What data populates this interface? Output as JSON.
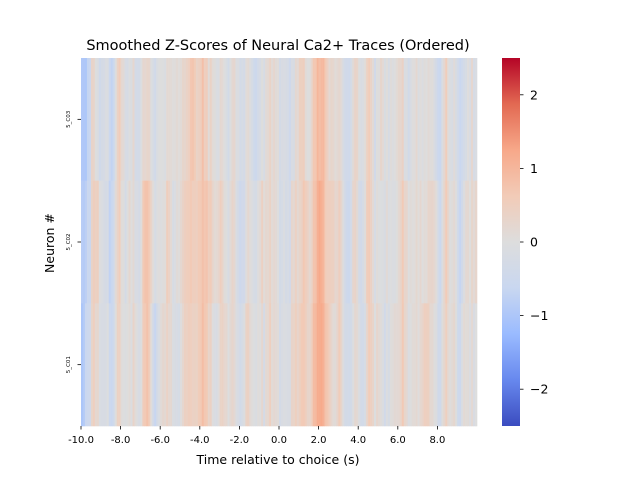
{
  "chart_data": {
    "type": "heatmap",
    "title": "Smoothed Z-Scores of Neural Ca2+ Traces (Ordered)",
    "xlabel": "Time relative to choice (s)",
    "ylabel": "Neuron #",
    "xlim": [
      -10,
      10
    ],
    "x_tick_labels": [
      "-10.0",
      "-8.0",
      "-6.0",
      "-4.0",
      "-2.0",
      "0.0",
      "2.0",
      "4.0",
      "6.0",
      "8.0"
    ],
    "rows": [
      "5_C03",
      "5_C02",
      "5_C01"
    ],
    "colorbar": {
      "colormap": "coolwarm",
      "vmin": -2.5,
      "vmax": 2.5,
      "ticks": [
        2,
        1,
        0,
        -1,
        -2
      ],
      "tick_labels": [
        "2",
        "1",
        "0",
        "−1",
        "−2"
      ]
    },
    "colormap_stops": [
      "#3b4cc0",
      "#6788ee",
      "#9abbff",
      "#c9d7f0",
      "#dddddd",
      "#f2cbb7",
      "#f7a889",
      "#e26952",
      "#b40426"
    ],
    "grid": false,
    "legend": "colorbar-right"
  }
}
